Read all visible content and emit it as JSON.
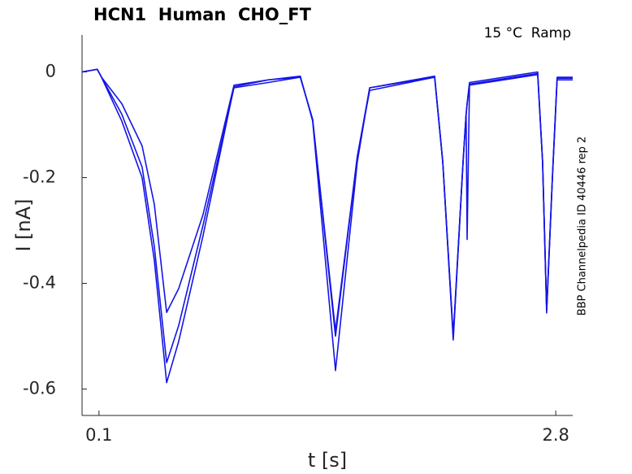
{
  "chart_data": {
    "type": "line",
    "title": "HCN1  Human  CHO_FT",
    "annotation": "15 °C  Ramp",
    "side_note": "BBP Channelpedia ID 40446 rep 2",
    "xlabel": "t [s]",
    "ylabel": "I [nA]",
    "x": [
      0,
      0.09,
      0.115,
      0.235,
      0.355,
      0.427,
      0.5,
      0.571,
      0.715,
      0.898,
      1.1,
      1.29,
      1.363,
      1.498,
      1.627,
      1.7,
      2.084,
      2.132,
      2.194,
      2.252,
      2.27,
      2.276,
      2.29,
      2.693,
      2.722,
      2.746,
      2.78,
      2.808,
      2.9
    ],
    "series": [
      {
        "color": "#1414e6",
        "values": [
          0,
          0.005,
          -0.01,
          -0.093,
          -0.2,
          -0.356,
          -0.588,
          -0.51,
          -0.31,
          -0.028,
          -0.015,
          -0.008,
          -0.093,
          -0.565,
          -0.17,
          -0.03,
          -0.008,
          -0.17,
          -0.507,
          -0.17,
          -0.08,
          -0.06,
          -0.023,
          -0.003,
          -0.17,
          -0.456,
          -0.2,
          -0.012,
          -0.012
        ]
      },
      {
        "color": "#1414e6",
        "values": [
          0,
          0.005,
          -0.01,
          -0.08,
          -0.18,
          -0.33,
          -0.55,
          -0.48,
          -0.29,
          -0.03,
          -0.02,
          -0.01,
          -0.09,
          -0.5,
          -0.16,
          -0.035,
          -0.01,
          -0.17,
          -0.5,
          -0.17,
          -0.08,
          -0.317,
          -0.025,
          -0.005,
          -0.17,
          -0.45,
          -0.2,
          -0.015,
          -0.015
        ]
      },
      {
        "color": "#1414e6",
        "values": [
          0,
          0.005,
          -0.01,
          -0.06,
          -0.14,
          -0.25,
          -0.455,
          -0.41,
          -0.27,
          -0.025,
          -0.015,
          -0.01,
          -0.09,
          -0.49,
          -0.16,
          -0.03,
          -0.01,
          -0.17,
          -0.5,
          -0.17,
          -0.08,
          -0.06,
          -0.02,
          0,
          -0.17,
          -0.45,
          -0.2,
          -0.01,
          -0.01
        ]
      }
    ],
    "xlim": [
      0,
      2.9
    ],
    "ylim": [
      -0.65,
      0.07
    ],
    "xticks": [
      0.1,
      2.8
    ],
    "yticks": [
      0,
      -0.2,
      -0.4,
      -0.6
    ]
  }
}
